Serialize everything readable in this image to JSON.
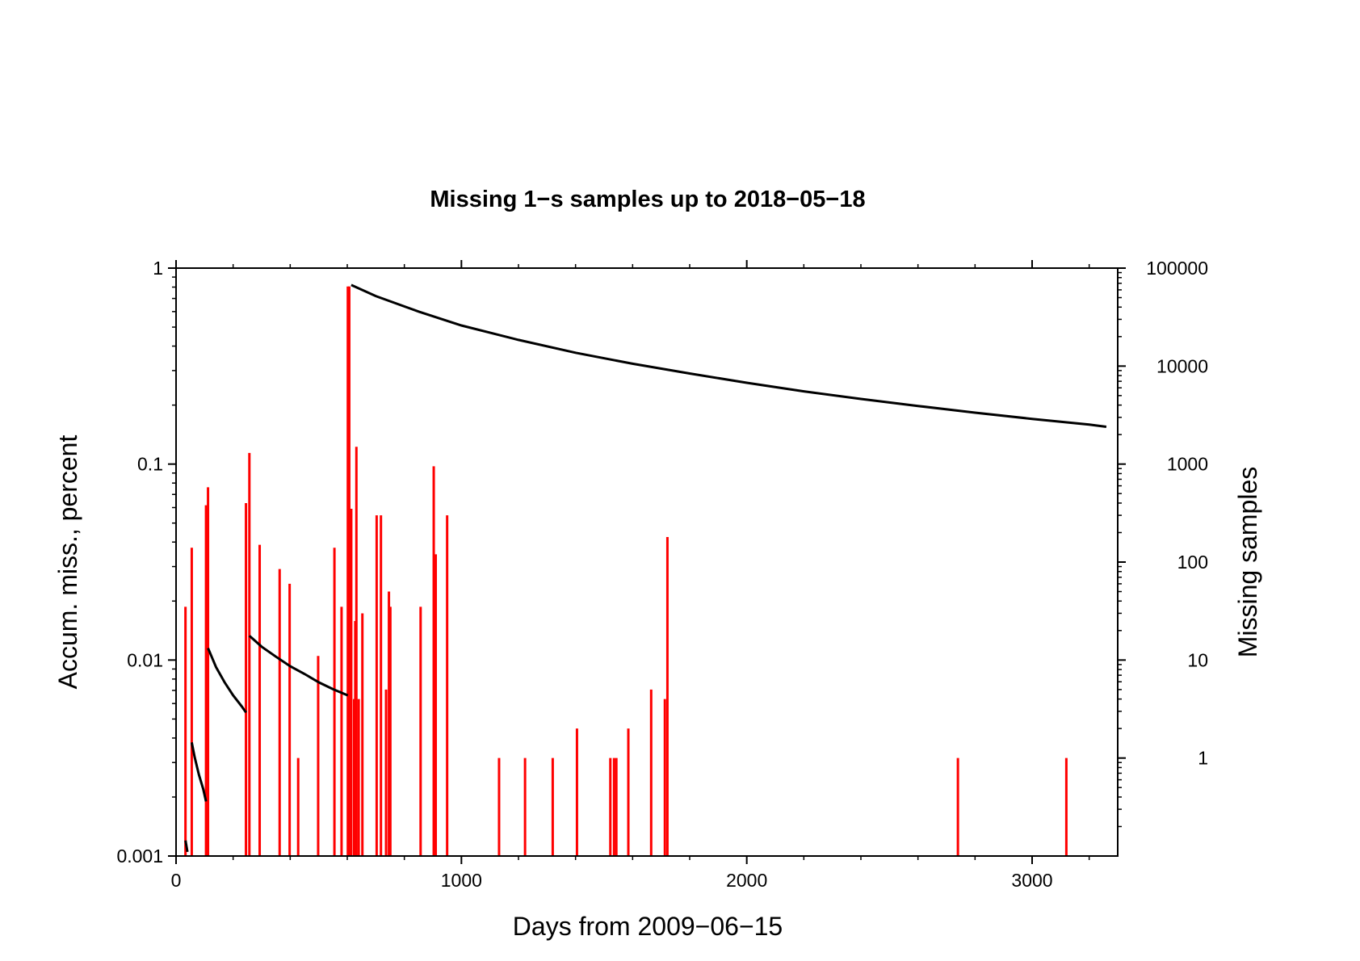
{
  "chart_data": {
    "type": "bar",
    "title": "Missing 1−s samples up to 2018−05−18",
    "xlabel": "Days from 2009−06−15",
    "ylabel_left": "Accum. miss., percent",
    "ylabel_right": "Missing samples",
    "xlim": [
      0,
      3300
    ],
    "ylim_left": [
      0.001,
      1
    ],
    "ylim_right": [
      0.1,
      100000
    ],
    "yscale": "log",
    "grid": false,
    "x_ticks": [
      {
        "value": 0,
        "label": "0"
      },
      {
        "value": 1000,
        "label": "1000"
      },
      {
        "value": 2000,
        "label": "2000"
      },
      {
        "value": 3000,
        "label": "3000"
      }
    ],
    "y_left_ticks": [
      {
        "value": 1,
        "label": "1"
      },
      {
        "value": 0.1,
        "label": "0.1"
      },
      {
        "value": 0.01,
        "label": "0.01"
      },
      {
        "value": 0.001,
        "label": "0.001"
      }
    ],
    "y_right_ticks": [
      {
        "value": 100000,
        "label": "100000"
      },
      {
        "value": 10000,
        "label": "10000"
      },
      {
        "value": 1000,
        "label": "1000"
      },
      {
        "value": 100,
        "label": "100"
      },
      {
        "value": 10,
        "label": "10"
      },
      {
        "value": 1,
        "label": "1"
      }
    ],
    "series": [
      {
        "name": "Missing samples",
        "type": "bar",
        "axis": "right",
        "color": "#ff0000",
        "days": [
          33,
          55,
          105,
          112,
          245,
          257,
          293,
          363,
          398,
          428,
          498,
          555,
          580,
          602,
          607,
          614,
          624,
          628,
          632,
          640,
          653,
          703,
          718,
          736,
          746,
          751,
          857,
          903,
          910,
          950,
          1132,
          1223,
          1320,
          1405,
          1522,
          1535,
          1543,
          1585,
          1665,
          1713,
          1722,
          2740,
          3120
        ],
        "values": [
          35,
          140,
          380,
          580,
          400,
          1300,
          150,
          85,
          60,
          1,
          11,
          140,
          35,
          65000,
          65000,
          350,
          4,
          25,
          1500,
          4,
          30,
          300,
          300,
          5,
          50,
          35,
          35,
          950,
          120,
          300,
          1,
          1,
          1,
          2,
          1,
          1,
          1,
          2,
          5,
          4,
          180,
          1,
          1
        ]
      },
      {
        "name": "Accum. miss., percent",
        "type": "line",
        "axis": "left",
        "color": "#000000",
        "segments": [
          {
            "x": [
              33,
              40
            ],
            "y": [
              0.0012,
              0.00105
            ]
          },
          {
            "x": [
              55,
              65,
              80,
              95,
              105
            ],
            "y": [
              0.0038,
              0.0032,
              0.0026,
              0.0022,
              0.0019
            ]
          },
          {
            "x": [
              112,
              140,
              170,
              200,
              230,
              245
            ],
            "y": [
              0.0115,
              0.0092,
              0.0077,
              0.0066,
              0.0058,
              0.0054
            ]
          },
          {
            "x": [
              257,
              300,
              350,
              400,
              450,
              500,
              550,
              602
            ],
            "y": [
              0.0133,
              0.0117,
              0.0104,
              0.0093,
              0.0085,
              0.0077,
              0.0071,
              0.0066
            ]
          },
          {
            "x": [
              614,
              700,
              850,
              1000,
              1200,
              1400,
              1600,
              1800,
              2000,
              2200,
              2400,
              2600,
              2800,
              3000,
              3200,
              3260
            ],
            "y": [
              0.82,
              0.72,
              0.6,
              0.51,
              0.43,
              0.37,
              0.325,
              0.29,
              0.26,
              0.235,
              0.215,
              0.198,
              0.183,
              0.17,
              0.159,
              0.155
            ]
          }
        ]
      }
    ]
  }
}
